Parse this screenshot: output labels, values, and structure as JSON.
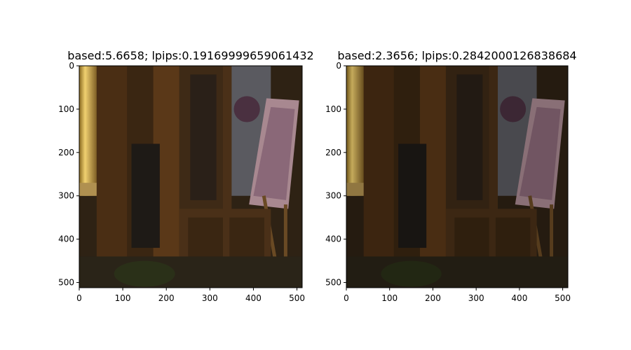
{
  "chart_data": [
    {
      "type": "image",
      "title": "based:5.6658; lpips:0.19169999659061432",
      "xlim": [
        0,
        512
      ],
      "ylim": [
        512,
        0
      ],
      "xticks": [
        0,
        100,
        200,
        300,
        400,
        500
      ],
      "yticks": [
        0,
        100,
        200,
        300,
        400,
        500
      ]
    },
    {
      "type": "image",
      "title": "based:2.3656; lpips:0.2842000126838684",
      "xlim": [
        0,
        512
      ],
      "ylim": [
        512,
        0
      ],
      "xticks": [
        0,
        100,
        200,
        300,
        400,
        500
      ],
      "yticks": [
        0,
        100,
        200,
        300,
        400,
        500
      ]
    }
  ]
}
